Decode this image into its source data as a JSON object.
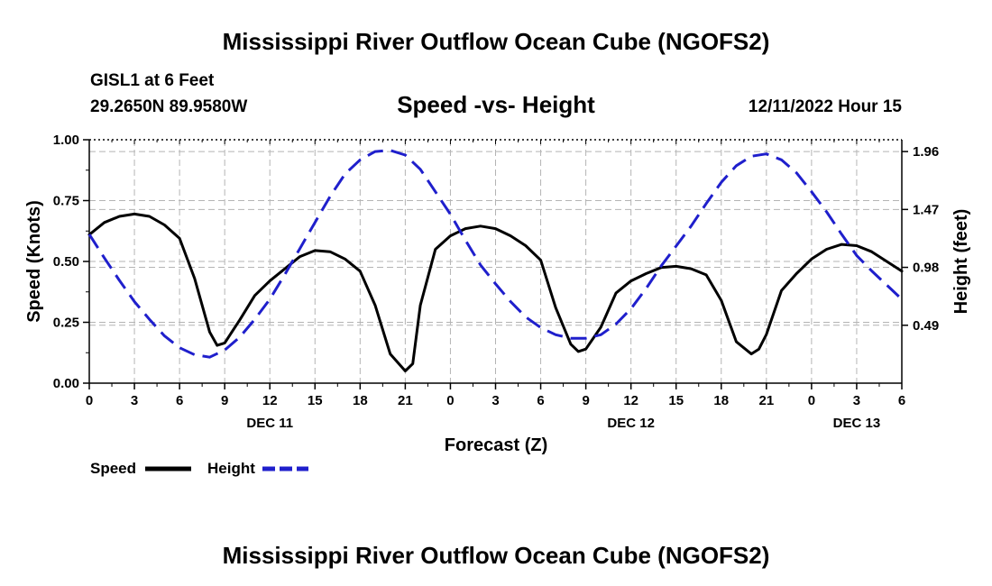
{
  "header": {
    "title": "Mississippi River Outflow Ocean Cube (NGOFS2)",
    "station": "GISL1 at 6 Feet",
    "coords": "29.2650N  89.9580W",
    "subtitle": "Speed -vs- Height",
    "date": "12/11/2022 Hour 15"
  },
  "footer": {
    "title": "Mississippi River Outflow Ocean Cube (NGOFS2)"
  },
  "legend": {
    "speed_label": "Speed",
    "height_label": "Height"
  },
  "colors": {
    "speed": "#000000",
    "height": "#1f1fcc",
    "grid": "#b4b4b4"
  },
  "chart_data": {
    "type": "line",
    "title": "Speed -vs- Height",
    "xlabel": "Forecast (Z)",
    "ylabel": "Speed (Knots)",
    "y2label": "Height (feet)",
    "xlim": [
      0,
      54
    ],
    "ylim": [
      0,
      1.0
    ],
    "y2lim": [
      0.0,
      2.06
    ],
    "x_ticks": [
      0,
      3,
      6,
      9,
      12,
      15,
      18,
      21,
      24,
      27,
      30,
      33,
      36,
      39,
      42,
      45,
      48,
      51,
      54
    ],
    "x_tick_labels": [
      "0",
      "3",
      "6",
      "9",
      "12",
      "15",
      "18",
      "21",
      "0",
      "3",
      "6",
      "9",
      "12",
      "15",
      "18",
      "21",
      "0",
      "3",
      "6"
    ],
    "day_labels": [
      {
        "x": 12,
        "label": "DEC 11"
      },
      {
        "x": 36,
        "label": "DEC 12"
      },
      {
        "x": 51,
        "label": "DEC 13"
      }
    ],
    "y_ticks": [
      0,
      0.25,
      0.5,
      0.75,
      1.0
    ],
    "y_tick_labels": [
      "0.00",
      "0.25",
      "0.50",
      "0.75",
      "1.00"
    ],
    "y2_ticks": [
      0.49,
      0.98,
      1.47,
      1.96
    ],
    "y2_tick_labels": [
      "0.49",
      "0.98",
      "1.47",
      "1.96"
    ],
    "series": [
      {
        "name": "Speed",
        "axis": "left",
        "style": "solid",
        "x": [
          0,
          1,
          2,
          3,
          4,
          5,
          6,
          7,
          8,
          8.5,
          9,
          10,
          11,
          12,
          13,
          14,
          15,
          16,
          17,
          18,
          19,
          20,
          21,
          21.5,
          22,
          23,
          24,
          25,
          26,
          27,
          28,
          29,
          30,
          31,
          32,
          32.5,
          33,
          34,
          35,
          36,
          37,
          38,
          39,
          40,
          41,
          42,
          43,
          44,
          44.5,
          45,
          46,
          47,
          48,
          49,
          50,
          51,
          52,
          53,
          54
        ],
        "values": [
          0.61,
          0.66,
          0.685,
          0.695,
          0.685,
          0.65,
          0.595,
          0.43,
          0.21,
          0.155,
          0.165,
          0.26,
          0.36,
          0.42,
          0.47,
          0.52,
          0.545,
          0.54,
          0.51,
          0.46,
          0.32,
          0.12,
          0.05,
          0.08,
          0.32,
          0.55,
          0.605,
          0.635,
          0.645,
          0.635,
          0.605,
          0.565,
          0.505,
          0.31,
          0.16,
          0.13,
          0.14,
          0.23,
          0.37,
          0.42,
          0.45,
          0.475,
          0.48,
          0.47,
          0.445,
          0.34,
          0.17,
          0.12,
          0.14,
          0.2,
          0.38,
          0.45,
          0.51,
          0.55,
          0.57,
          0.565,
          0.54,
          0.5,
          0.46
        ]
      },
      {
        "name": "Height",
        "axis": "right",
        "style": "dashed",
        "x": [
          0,
          1,
          2,
          3,
          4,
          5,
          6,
          7,
          8,
          9,
          10,
          11,
          12,
          13,
          14,
          15,
          16,
          17,
          18,
          19,
          20,
          21,
          22,
          23,
          24,
          25,
          26,
          27,
          28,
          29,
          30,
          31,
          32,
          33,
          34,
          35,
          36,
          37,
          38,
          39,
          40,
          41,
          42,
          43,
          44,
          45,
          46,
          47,
          48,
          49,
          50,
          51,
          52,
          53,
          54
        ],
        "values": [
          1.26,
          1.06,
          0.87,
          0.69,
          0.54,
          0.4,
          0.3,
          0.24,
          0.22,
          0.28,
          0.39,
          0.54,
          0.71,
          0.92,
          1.14,
          1.36,
          1.58,
          1.77,
          1.89,
          1.96,
          1.97,
          1.93,
          1.81,
          1.62,
          1.43,
          1.21,
          1.0,
          0.84,
          0.69,
          0.56,
          0.47,
          0.41,
          0.38,
          0.38,
          0.41,
          0.5,
          0.63,
          0.8,
          0.99,
          1.16,
          1.33,
          1.52,
          1.7,
          1.84,
          1.92,
          1.94,
          1.89,
          1.78,
          1.62,
          1.45,
          1.26,
          1.08,
          0.95,
          0.83,
          0.71
        ]
      }
    ]
  }
}
